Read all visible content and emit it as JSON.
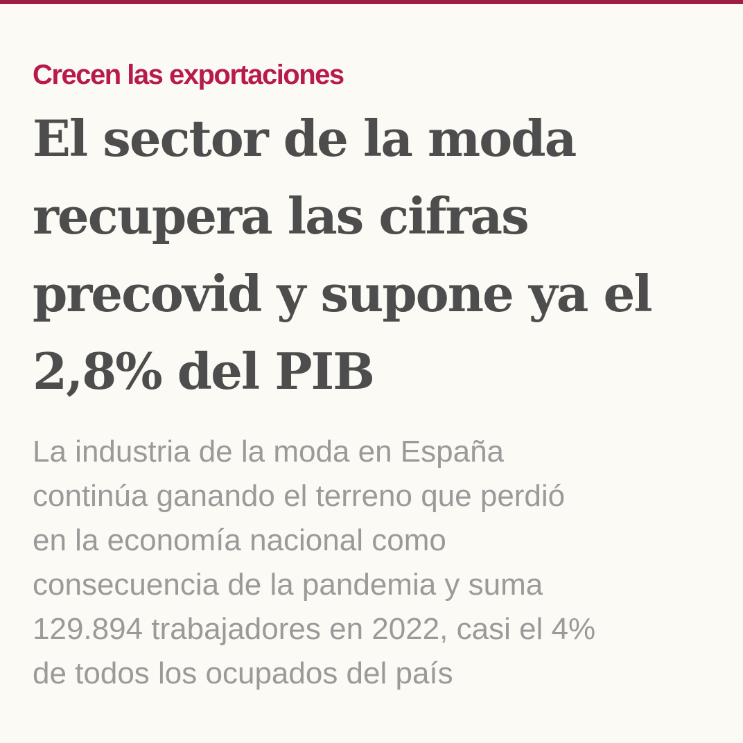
{
  "article": {
    "kicker": "Crecen las exportaciones",
    "headline_lines": [
      "El sector de la moda",
      "recupera las cifras",
      "precovid y supone ya el",
      "2,8% del PIB"
    ],
    "standfirst_lines": [
      "La industria de la moda en España",
      "continúa ganando el terreno que perdió",
      "en la economía nacional como",
      "consecuencia de la pandemia y suma",
      "129.894 trabajadores en 2022, casi el 4%",
      "de todos los ocupados del país"
    ]
  },
  "colors": {
    "background": "#fcfaf4",
    "accent": "#b81a4b",
    "headline": "#4d4d4d",
    "standfirst": "#9a9a9a"
  }
}
